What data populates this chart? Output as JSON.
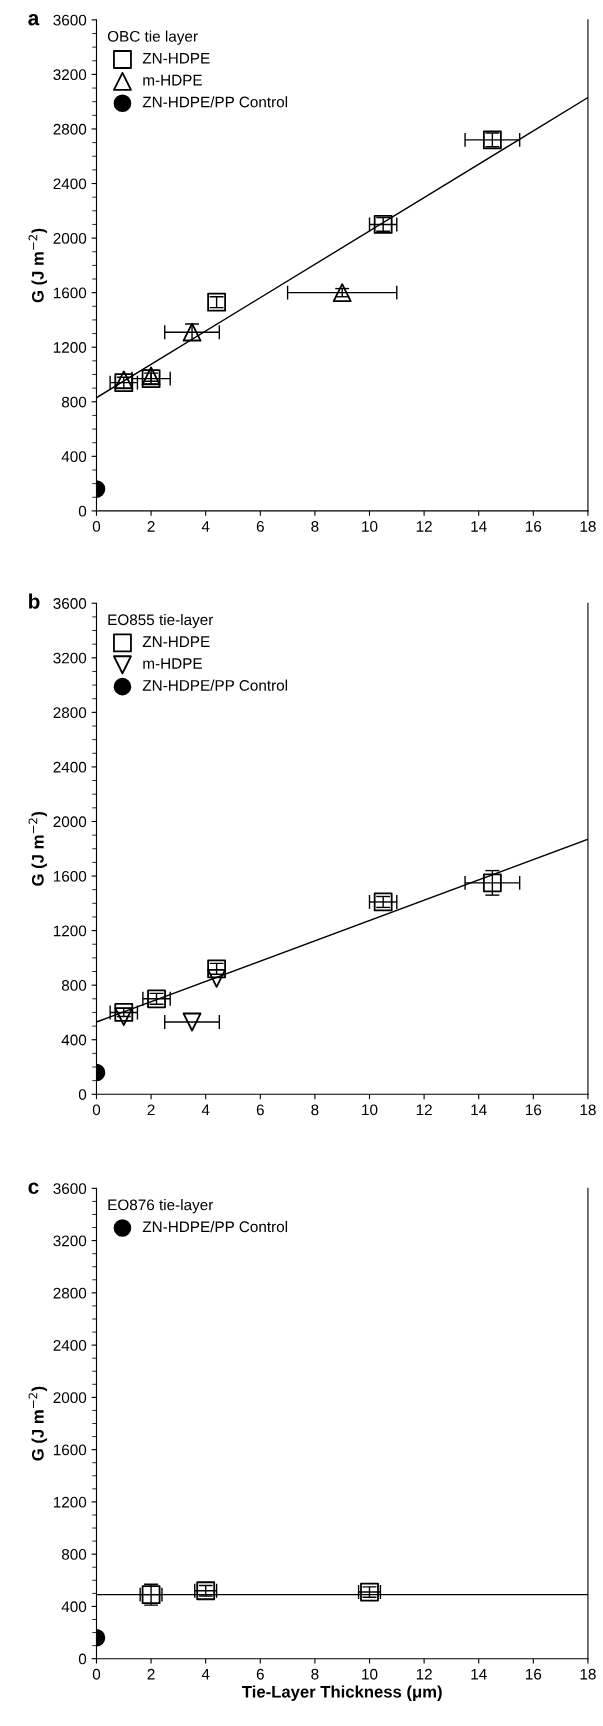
{
  "chart_data": [
    {
      "type": "scatter",
      "annotations": [
        "a"
      ],
      "legend_title": "OBC tie layer",
      "ylabel": "G (J m$^{−2}$)",
      "xlim": [
        0,
        18
      ],
      "xticks": [
        0,
        2,
        4,
        6,
        8,
        10,
        12,
        14,
        16,
        18
      ],
      "ylim": [
        0,
        3600
      ],
      "yticks": [
        0,
        400,
        800,
        1200,
        1600,
        2000,
        2400,
        2800,
        3200,
        3600
      ],
      "legend": "top left",
      "grid": false,
      "series": [
        {
          "name": "ZN-HDPE",
          "color": "#000000",
          "marker": "square",
          "x": [
            1,
            2,
            4.4,
            10.5,
            14.5
          ],
          "values": [
            940,
            970,
            1530,
            2100,
            2720
          ],
          "xerrors": [
            0.5,
            0.7,
            null,
            0.5,
            1
          ],
          "errors": [
            40,
            40,
            40,
            50,
            50
          ]
        },
        {
          "name": "m-HDPE",
          "color": "#000000",
          "marker": "triangle",
          "x": [
            1,
            2,
            3.5,
            9
          ],
          "values": [
            960,
            990,
            1310,
            1600
          ],
          "xerrors": [
            null,
            null,
            1,
            2
          ],
          "errors": [
            null,
            40,
            60,
            30
          ]
        },
        {
          "name": "ZN-HDPE/PP Control",
          "color": "#000000",
          "marker": "circle",
          "x": [
            0
          ],
          "values": [
            160
          ]
        },
        {
          "type": "line",
          "color": "#000000",
          "marker": "none",
          "x": [
            0,
            18
          ],
          "values": [
            830,
            3030
          ]
        }
      ]
    },
    {
      "type": "scatter",
      "annotations": [
        "b"
      ],
      "legend_title": "EO855 tie-layer",
      "ylabel": "G (J m$^{−2}$)",
      "xlim": [
        0,
        18
      ],
      "xticks": [
        0,
        2,
        4,
        6,
        8,
        10,
        12,
        14,
        16,
        18
      ],
      "ylim": [
        0,
        3600
      ],
      "yticks": [
        0,
        400,
        800,
        1200,
        1600,
        2000,
        2400,
        2800,
        3200,
        3600
      ],
      "legend": "top left",
      "grid": false,
      "series": [
        {
          "name": "ZN-HDPE",
          "color": "#000000",
          "marker": "square",
          "x": [
            1,
            2.2,
            4.4,
            10.5,
            14.5
          ],
          "values": [
            600,
            700,
            920,
            1410,
            1550
          ],
          "xerrors": [
            0.5,
            0.5,
            null,
            0.5,
            1
          ],
          "errors": [
            30,
            40,
            40,
            40,
            90
          ]
        },
        {
          "name": "m-HDPE",
          "color": "#000000",
          "marker": "triangle_down",
          "x": [
            1,
            3.5,
            4.4
          ],
          "values": [
            570,
            530,
            850
          ],
          "xerrors": [
            null,
            1,
            null
          ],
          "errors": [
            null,
            null,
            null
          ]
        },
        {
          "name": "ZN-HDPE/PP Control",
          "color": "#000000",
          "marker": "circle",
          "x": [
            0
          ],
          "values": [
            160
          ]
        },
        {
          "type": "line",
          "color": "#000000",
          "marker": "none",
          "x": [
            0,
            18
          ],
          "values": [
            530,
            1870
          ]
        }
      ]
    },
    {
      "type": "scatter",
      "annotations": [
        "c"
      ],
      "legend_title": "EO876 tie-layer",
      "xlabel": "Tie-Layer Thickness (μm)",
      "ylabel": "G (J m$^{−2}$)",
      "xlim": [
        0,
        18
      ],
      "xticks": [
        0,
        2,
        4,
        6,
        8,
        10,
        12,
        14,
        16,
        18
      ],
      "ylim": [
        0,
        3600
      ],
      "yticks": [
        0,
        400,
        800,
        1200,
        1600,
        2000,
        2400,
        2800,
        3200,
        3600
      ],
      "legend": "top left",
      "grid": false,
      "series": [
        {
          "color": "#000000",
          "marker": "square",
          "x": [
            2,
            4,
            10
          ],
          "values": [
            490,
            520,
            510
          ],
          "xerrors": [
            0.4,
            0.4,
            0.4
          ],
          "errors": [
            80,
            40,
            40
          ]
        },
        {
          "name": "ZN-HDPE/PP Control",
          "color": "#000000",
          "marker": "circle",
          "x": [
            0
          ],
          "values": [
            160
          ]
        },
        {
          "type": "line",
          "color": "#000000",
          "marker": "none",
          "x": [
            0,
            18
          ],
          "values": [
            490,
            490
          ]
        }
      ]
    }
  ]
}
